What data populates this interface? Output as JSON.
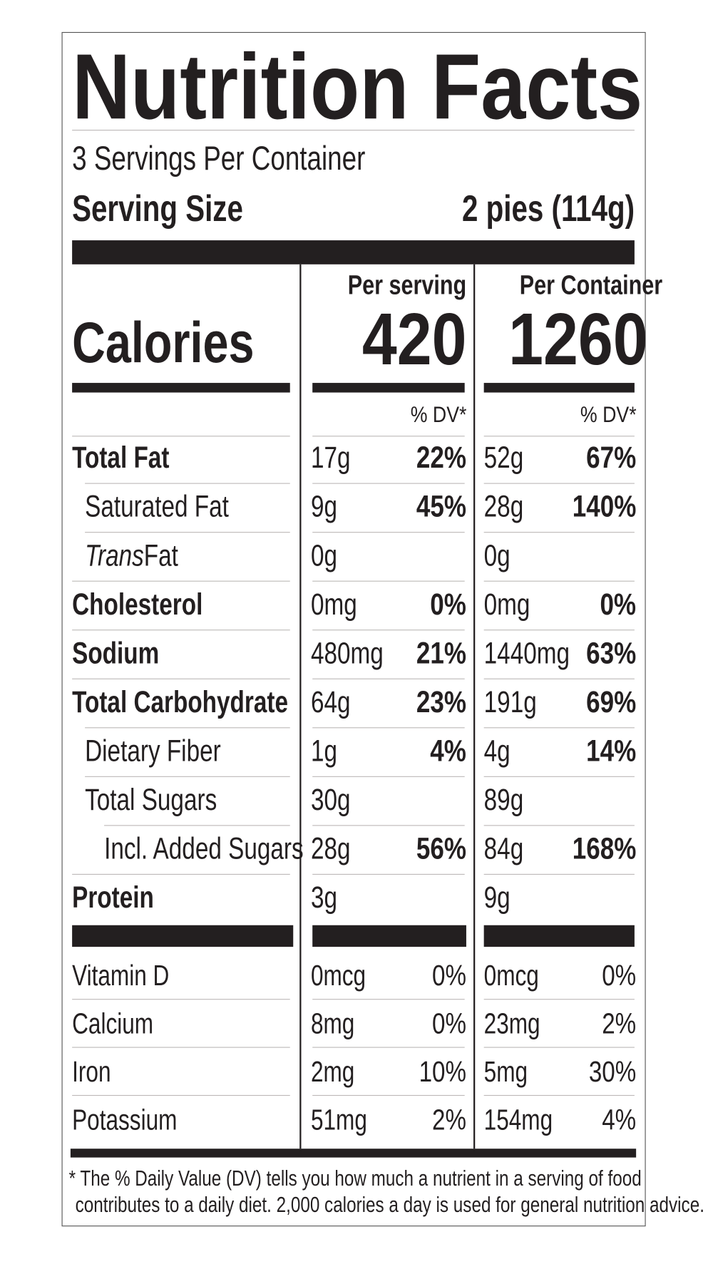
{
  "title": "Nutrition Facts",
  "servings_per_container": "3 Servings Per Container",
  "serving_size": {
    "label": "Serving Size",
    "value": "2 pies (114g)"
  },
  "columns": [
    "Per serving",
    "Per Container"
  ],
  "calories": {
    "label": "Calories",
    "values": [
      "420",
      "1260"
    ]
  },
  "dv_header": [
    "% DV*",
    "% DV*"
  ],
  "nutrients": [
    {
      "name": "Total Fat",
      "amounts": [
        "17g",
        "52g"
      ],
      "dv": [
        "22%",
        "67%"
      ]
    },
    {
      "name": "Saturated Fat",
      "amounts": [
        "9g",
        "28g"
      ],
      "dv": [
        "45%",
        "140%"
      ]
    },
    {
      "italic": "Trans",
      "name": "Fat",
      "amounts": [
        "0g",
        "0g"
      ],
      "dv": [
        null,
        null
      ]
    },
    {
      "name": "Cholesterol",
      "amounts": [
        "0mg",
        "0mg"
      ],
      "dv": [
        "0%",
        "0%"
      ]
    },
    {
      "name": "Sodium",
      "amounts": [
        "480mg",
        "1440mg"
      ],
      "dv": [
        "21%",
        "63%"
      ]
    },
    {
      "name": "Total Carbohydrate",
      "amounts": [
        "64g",
        "191g"
      ],
      "dv": [
        "23%",
        "69%"
      ]
    },
    {
      "name": "Dietary Fiber",
      "amounts": [
        "1g",
        "4g"
      ],
      "dv": [
        "4%",
        "14%"
      ]
    },
    {
      "name": "Total Sugars",
      "amounts": [
        "30g",
        "89g"
      ],
      "dv": [
        null,
        null
      ]
    },
    {
      "name": "Incl. Added Sugars",
      "amounts": [
        "28g",
        "84g"
      ],
      "dv": [
        "56%",
        "168%"
      ]
    },
    {
      "name": "Protein",
      "amounts": [
        "3g",
        "9g"
      ],
      "dv": [
        null,
        null
      ]
    }
  ],
  "vitamins": [
    {
      "name": "Vitamin D",
      "amounts": [
        "0mcg",
        "0mcg"
      ],
      "dv": [
        "0%",
        "0%"
      ]
    },
    {
      "name": "Calcium",
      "amounts": [
        "8mg",
        "23mg"
      ],
      "dv": [
        "0%",
        "2%"
      ]
    },
    {
      "name": "Iron",
      "amounts": [
        "2mg",
        "5mg"
      ],
      "dv": [
        "10%",
        "30%"
      ]
    },
    {
      "name": "Potassium",
      "amounts": [
        "51mg",
        "154mg"
      ],
      "dv": [
        "2%",
        "4%"
      ]
    }
  ],
  "footnote": [
    "* The % Daily Value (DV) tells you how much a nutrient in a serving of food",
    "contributes to a daily diet. 2,000 calories a day is used for general nutrition advice."
  ]
}
